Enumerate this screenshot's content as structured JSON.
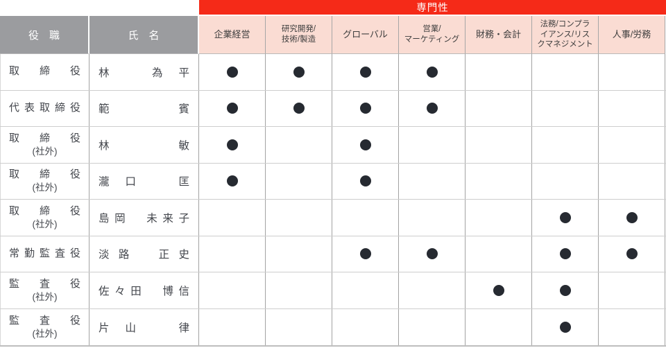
{
  "banner": {
    "label": "専門性"
  },
  "header": {
    "position_label": "役　職",
    "name_label": "氏　名",
    "expertise_columns": [
      {
        "key": "corporate-management",
        "label": "企業経営"
      },
      {
        "key": "rnd-tech-manufacturing",
        "label": "研究開発/\n技術/製造"
      },
      {
        "key": "global",
        "label": "グローバル"
      },
      {
        "key": "sales-marketing",
        "label": "営業/\nマーケティング"
      },
      {
        "key": "finance-accounting",
        "label": "財務・会計"
      },
      {
        "key": "legal-compliance-risk",
        "label": "法務/コンプラ\nイアンス/リス\nクマネジメント"
      },
      {
        "key": "hr-labor",
        "label": "人事/労務"
      }
    ]
  },
  "rows": [
    {
      "position": "取締役",
      "note": "",
      "name": "林　為平",
      "expertise": [
        true,
        true,
        true,
        true,
        false,
        false,
        false
      ]
    },
    {
      "position": "代表取締役",
      "note": "",
      "name": "範　賓",
      "expertise": [
        true,
        true,
        true,
        true,
        false,
        false,
        false
      ]
    },
    {
      "position": "取締役",
      "note": "(社外)",
      "name": "林　敏",
      "expertise": [
        true,
        false,
        true,
        false,
        false,
        false,
        false
      ]
    },
    {
      "position": "取締役",
      "note": "(社外)",
      "name": "瀧口　匡",
      "expertise": [
        true,
        false,
        true,
        false,
        false,
        false,
        false
      ]
    },
    {
      "position": "取締役",
      "note": "(社外)",
      "name": "島岡　未来子",
      "expertise": [
        false,
        false,
        false,
        false,
        false,
        true,
        true
      ]
    },
    {
      "position": "常勤監査役",
      "note": "",
      "name": "淡路　正史",
      "expertise": [
        false,
        false,
        true,
        true,
        false,
        true,
        true
      ]
    },
    {
      "position": "監査役",
      "note": "(社外)",
      "name": "佐々田　博信",
      "expertise": [
        false,
        false,
        false,
        false,
        true,
        true,
        false
      ]
    },
    {
      "position": "監査役",
      "note": "(社外)",
      "name": "片山　律",
      "expertise": [
        false,
        false,
        false,
        false,
        false,
        true,
        false
      ]
    }
  ],
  "colors": {
    "banner_red": "#f52a18",
    "header_gray": "#9b9c9f",
    "header_pink": "#fadcd3",
    "dot_dark": "#262a31",
    "grid_vertical": "#a2a2a2",
    "grid_horizontal": "#cdcdcd"
  }
}
